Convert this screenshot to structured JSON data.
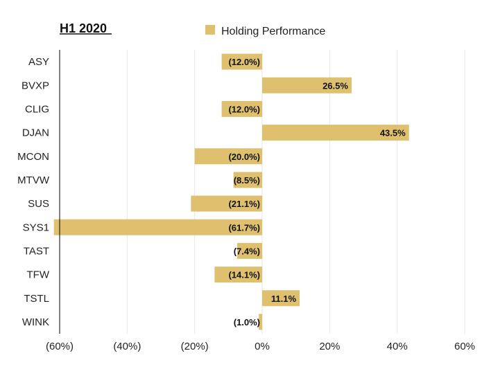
{
  "chart_data": {
    "type": "bar",
    "orientation": "horizontal",
    "title": "H1 2020",
    "categories": [
      "ASY",
      "BVXP",
      "CLIG",
      "DJAN",
      "MCON",
      "MTVW",
      "SUS",
      "SYS1",
      "TAST",
      "TFW",
      "TSTL",
      "WINK"
    ],
    "series": [
      {
        "name": "Holding Performance",
        "values": [
          -12.0,
          26.5,
          -12.0,
          43.5,
          -20.0,
          -8.5,
          -21.1,
          -61.7,
          -7.4,
          -14.1,
          11.1,
          -1.0
        ],
        "labels": [
          "(12.0%)",
          "26.5%",
          "(12.0%)",
          "43.5%",
          "(20.0%)",
          "(8.5%)",
          "(21.1%)",
          "(61.7%)",
          "(7.4%)",
          "(14.1%)",
          "11.1%",
          "(1.0%)"
        ]
      }
    ],
    "xlim": [
      -60,
      60
    ],
    "x_ticks": [
      -60,
      -40,
      -20,
      0,
      20,
      40,
      60
    ],
    "x_tick_labels": [
      "(60%)",
      "(40%)",
      "(20%)",
      "0%",
      "20%",
      "40%",
      "60%"
    ],
    "xlabel": "",
    "ylabel": "",
    "grid": "vertical",
    "legend": "top",
    "colors": {
      "bar": "#dec06f",
      "grid": "#e6e6e6",
      "axis": "#000000"
    }
  }
}
